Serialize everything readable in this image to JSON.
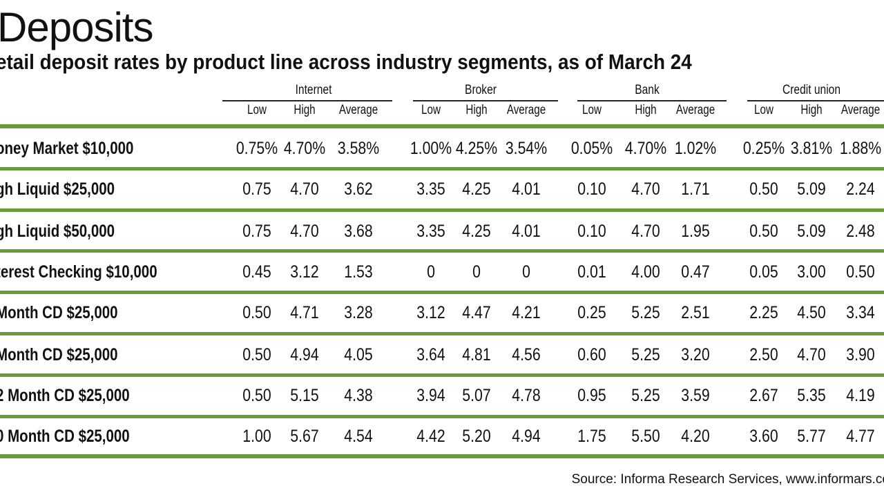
{
  "title": "Deposits",
  "subtitle": "etail deposit rates by product line across industry segments, as of March 24",
  "segments": [
    {
      "name": "Internet"
    },
    {
      "name": "Broker"
    },
    {
      "name": "Bank"
    },
    {
      "name": "Credit union"
    }
  ],
  "subheaders": [
    "Low",
    "High",
    "Average"
  ],
  "colors": {
    "rule_green": "#6a9a3e",
    "text": "#111111",
    "background": "#ffffff"
  },
  "rows": [
    {
      "label": "oney Market $10,000",
      "values": [
        "0.75%",
        "4.70%",
        "3.58%",
        "1.00%",
        "4.25%",
        "3.54%",
        "0.05%",
        "4.70%",
        "1.02%",
        "0.25%",
        "3.81%",
        "1.88%"
      ]
    },
    {
      "label": "gh Liquid $25,000",
      "values": [
        "0.75",
        "4.70",
        "3.62",
        "3.35",
        "4.25",
        "4.01",
        "0.10",
        "4.70",
        "1.71",
        "0.50",
        "5.09",
        "2.24"
      ]
    },
    {
      "label": "gh Liquid $50,000",
      "values": [
        "0.75",
        "4.70",
        "3.68",
        "3.35",
        "4.25",
        "4.01",
        "0.10",
        "4.70",
        "1.95",
        "0.50",
        "5.09",
        "2.48"
      ]
    },
    {
      "label": "terest Checking $10,000",
      "values": [
        "0.45",
        "3.12",
        "1.53",
        "0",
        "0",
        "0",
        "0.01",
        "4.00",
        "0.47",
        "0.05",
        "3.00",
        "0.50"
      ]
    },
    {
      "label": "Month CD $25,000",
      "values": [
        "0.50",
        "4.71",
        "3.28",
        "3.12",
        "4.47",
        "4.21",
        "0.25",
        "5.25",
        "2.51",
        "2.25",
        "4.50",
        "3.34"
      ]
    },
    {
      "label": "Month CD $25,000",
      "values": [
        "0.50",
        "4.94",
        "4.05",
        "3.64",
        "4.81",
        "4.56",
        "0.60",
        "5.25",
        "3.20",
        "2.50",
        "4.70",
        "3.90"
      ]
    },
    {
      "label": "2 Month CD $25,000",
      "values": [
        "0.50",
        "5.15",
        "4.38",
        "3.94",
        "5.07",
        "4.78",
        "0.95",
        "5.25",
        "3.59",
        "2.67",
        "5.35",
        "4.19"
      ]
    },
    {
      "label": "0 Month CD $25,000",
      "values": [
        "1.00",
        "5.67",
        "4.54",
        "4.42",
        "5.20",
        "4.94",
        "1.75",
        "5.50",
        "4.20",
        "3.60",
        "5.77",
        "4.77"
      ]
    }
  ],
  "source": "Source:  Informa Research Services, www.informars.co"
}
